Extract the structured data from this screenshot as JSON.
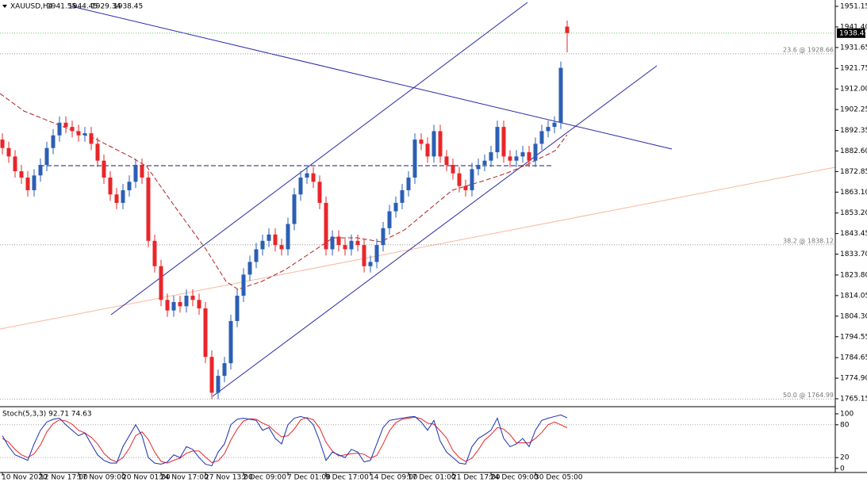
{
  "chart_data": {
    "type": "candlestick",
    "symbol": "XAUUSD,H4",
    "categories": [
      "10 Nov 2020",
      null,
      null,
      null,
      null,
      null,
      "12 Nov 17:00",
      null,
      null,
      null,
      null,
      null,
      "17 Nov 09:00",
      null,
      null,
      null,
      null,
      null,
      null,
      "20 Nov 01:00",
      null,
      null,
      null,
      null,
      null,
      "24 Nov 17:00",
      null,
      null,
      null,
      null,
      null,
      null,
      "27 Nov 13:00",
      null,
      null,
      null,
      null,
      null,
      "2 Dec 09:00",
      null,
      null,
      null,
      null,
      null,
      null,
      "7 Dec 01:00",
      null,
      null,
      null,
      null,
      null,
      "9 Dec 17:00",
      null,
      null,
      null,
      null,
      null,
      null,
      "14 Dec 09:00",
      null,
      null,
      null,
      null,
      null,
      "17 Dec 01:00",
      null,
      null,
      null,
      null,
      null,
      null,
      "21 Dec 17:00",
      null,
      null,
      null,
      null,
      null,
      "24 Dec 09:00",
      null,
      null,
      null,
      null,
      null,
      null,
      "30 Dec 05:00",
      null,
      null,
      null,
      null,
      null
    ],
    "open": [
      1888,
      1884,
      1880,
      1873,
      1870,
      1864,
      1871,
      1876,
      1884,
      1890,
      1896,
      1894,
      1892,
      1890,
      1891,
      1886,
      1878,
      1870,
      1862,
      1858,
      1864,
      1868,
      1876,
      1870,
      1840,
      1828,
      1812,
      1807,
      1811,
      1809,
      1814,
      1812,
      1808,
      1785,
      1768,
      1776,
      1782,
      1802,
      1814,
      1824,
      1830,
      1836,
      1840,
      1843,
      1838,
      1836,
      1848,
      1862,
      1870,
      1872,
      1868,
      1858,
      1836,
      1842,
      1838,
      1836,
      1840,
      1838,
      1828,
      1830,
      1838,
      1846,
      1854,
      1858,
      1864,
      1870,
      1888,
      1886,
      1880,
      1892,
      1880,
      1876,
      1872,
      1866,
      1864,
      1874,
      1876,
      1878,
      1882,
      1894,
      1880,
      1878,
      1880,
      1882,
      1878,
      1886,
      1892,
      1894,
      1896,
      1941.55
    ],
    "high": [
      1891,
      1887,
      1883,
      1876,
      1873,
      1874,
      1879,
      1887,
      1893,
      1899,
      1899,
      1897,
      1895,
      1894,
      1894,
      1889,
      1881,
      1873,
      1865,
      1867,
      1871,
      1879,
      1879,
      1873,
      1843,
      1831,
      1815,
      1814,
      1814,
      1817,
      1817,
      1815,
      1811,
      1788,
      1779,
      1785,
      1805,
      1817,
      1827,
      1833,
      1839,
      1843,
      1846,
      1846,
      1841,
      1851,
      1865,
      1873,
      1875,
      1875,
      1871,
      1861,
      1845,
      1845,
      1841,
      1843,
      1843,
      1841,
      1833,
      1841,
      1849,
      1857,
      1861,
      1867,
      1873,
      1891,
      1891,
      1889,
      1895,
      1895,
      1883,
      1879,
      1875,
      1869,
      1877,
      1879,
      1881,
      1885,
      1897,
      1897,
      1883,
      1883,
      1885,
      1885,
      1889,
      1895,
      1897,
      1899,
      1925,
      1944.45
    ],
    "low": [
      1881,
      1877,
      1870,
      1867,
      1861,
      1861,
      1868,
      1873,
      1881,
      1887,
      1891,
      1889,
      1887,
      1887,
      1883,
      1875,
      1867,
      1859,
      1855,
      1855,
      1861,
      1865,
      1867,
      1837,
      1825,
      1809,
      1804,
      1804,
      1806,
      1806,
      1809,
      1805,
      1782,
      1765,
      1765,
      1773,
      1779,
      1799,
      1811,
      1821,
      1827,
      1833,
      1837,
      1835,
      1833,
      1833,
      1845,
      1859,
      1867,
      1865,
      1855,
      1833,
      1833,
      1835,
      1833,
      1833,
      1835,
      1825,
      1825,
      1827,
      1835,
      1843,
      1851,
      1855,
      1861,
      1867,
      1883,
      1877,
      1877,
      1877,
      1873,
      1869,
      1863,
      1861,
      1861,
      1871,
      1873,
      1875,
      1879,
      1877,
      1875,
      1875,
      1877,
      1875,
      1875,
      1883,
      1889,
      1891,
      1893,
      1929.34
    ],
    "close": [
      1884,
      1880,
      1873,
      1870,
      1864,
      1871,
      1876,
      1884,
      1890,
      1896,
      1894,
      1892,
      1890,
      1891,
      1886,
      1878,
      1870,
      1862,
      1858,
      1864,
      1868,
      1876,
      1870,
      1840,
      1828,
      1812,
      1807,
      1811,
      1809,
      1814,
      1812,
      1808,
      1785,
      1768,
      1776,
      1782,
      1802,
      1814,
      1824,
      1830,
      1836,
      1840,
      1843,
      1838,
      1836,
      1848,
      1862,
      1870,
      1872,
      1868,
      1858,
      1836,
      1842,
      1838,
      1836,
      1840,
      1838,
      1828,
      1830,
      1838,
      1846,
      1854,
      1858,
      1864,
      1870,
      1888,
      1886,
      1880,
      1892,
      1880,
      1876,
      1872,
      1866,
      1864,
      1874,
      1876,
      1878,
      1882,
      1894,
      1880,
      1878,
      1880,
      1882,
      1878,
      1886,
      1892,
      1894,
      1896,
      1922,
      1938.45
    ],
    "up_color": "#2b5fb4",
    "down_color": "#e8262a",
    "ylim": [
      1761.39,
      1954.16
    ],
    "yticks": [
      1951.15,
      {
        "value": 1941.4,
        "label": "1941.40"
      },
      1931.65,
      1921.75,
      {
        "value": 1912,
        "label": "1912.00"
      },
      1902.25,
      1892.35,
      {
        "value": 1882.6,
        "label": "1882.60"
      },
      1872.85,
      {
        "value": 1863.1,
        "label": "1863.10"
      },
      {
        "value": 1853.2,
        "label": "1853.20"
      },
      1843.45,
      {
        "value": 1833.7,
        "label": "1833.70"
      },
      {
        "value": 1823.8,
        "label": "1823.80"
      },
      1814.05,
      {
        "value": 1804.3,
        "label": "1804.30"
      },
      1794.55,
      1784.65,
      {
        "value": 1774.9,
        "label": "1774.90"
      },
      1765.15
    ],
    "fibonacci": [
      {
        "label": "23.6 @ 1928.66",
        "value": 1928.66
      },
      {
        "label": "38.2 @ 1838.12",
        "value": 1838.12
      },
      {
        "label": "50.0 @ 1764.99",
        "value": 1764.99
      }
    ],
    "stochastic": {
      "label": "Stoch(5,3,3) 92.71 74.63",
      "ylim": [
        0,
        100
      ],
      "yticks": [
        0,
        20,
        80,
        100
      ],
      "series": [
        {
          "name": "main",
          "color": "#1a2fb0",
          "values": [
            60,
            40,
            25,
            20,
            15,
            45,
            70,
            85,
            90,
            92,
            80,
            70,
            60,
            65,
            45,
            25,
            15,
            10,
            10,
            40,
            60,
            80,
            60,
            20,
            10,
            8,
            12,
            25,
            20,
            40,
            35,
            20,
            8,
            5,
            30,
            45,
            80,
            90,
            92,
            90,
            88,
            70,
            75,
            55,
            45,
            80,
            92,
            95,
            92,
            80,
            50,
            15,
            30,
            25,
            20,
            35,
            30,
            12,
            15,
            45,
            75,
            88,
            90,
            92,
            94,
            95,
            85,
            70,
            88,
            50,
            30,
            20,
            10,
            8,
            40,
            55,
            62,
            70,
            92,
            55,
            40,
            45,
            55,
            40,
            70,
            88,
            92,
            95,
            98,
            92.71
          ]
        },
        {
          "name": "signal",
          "color": "#e8262a",
          "values": [
            55,
            48,
            35,
            25,
            20,
            27,
            43,
            67,
            82,
            89,
            87,
            81,
            70,
            65,
            57,
            45,
            28,
            17,
            12,
            20,
            37,
            60,
            67,
            53,
            30,
            13,
            10,
            15,
            19,
            28,
            32,
            32,
            21,
            11,
            14,
            27,
            52,
            72,
            87,
            91,
            90,
            83,
            78,
            67,
            58,
            60,
            72,
            89,
            93,
            89,
            74,
            48,
            32,
            23,
            25,
            27,
            28,
            26,
            19,
            24,
            45,
            69,
            84,
            90,
            92,
            94,
            91,
            83,
            81,
            69,
            56,
            33,
            20,
            13,
            19,
            34,
            52,
            62,
            75,
            72,
            62,
            47,
            47,
            47,
            55,
            66,
            80,
            85,
            80,
            74.63
          ]
        }
      ]
    }
  }
}
